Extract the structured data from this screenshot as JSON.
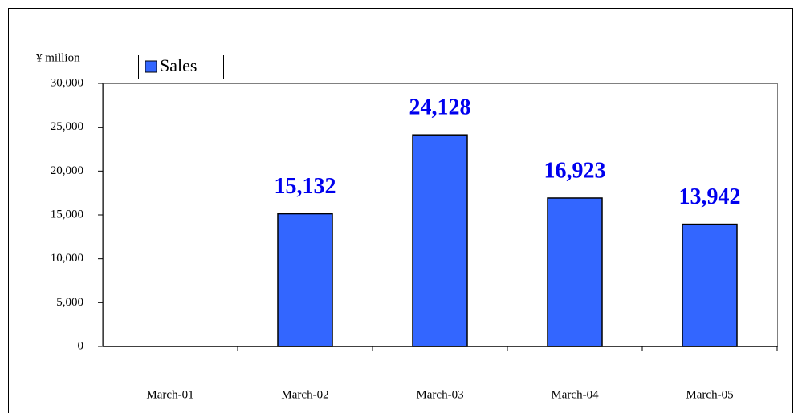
{
  "chart_data": {
    "type": "bar",
    "y_label": "¥ million",
    "categories": [
      "March-01",
      "March-02",
      "March-03",
      "March-04",
      "March-05"
    ],
    "series": [
      {
        "name": "Sales",
        "color": "#3366ff",
        "values": [
          null,
          15132,
          24128,
          16923,
          13942
        ],
        "value_labels": [
          null,
          "15,132",
          "24,128",
          "16,923",
          "13,942"
        ]
      }
    ],
    "ylim": [
      0,
      30000
    ],
    "yticks": [
      0,
      {
        "value": 5000,
        "label": "5,000"
      },
      {
        "value": 10000,
        "label": "10,000"
      },
      {
        "value": 15000,
        "label": "15,000"
      },
      {
        "value": 20000,
        "label": "20,000"
      },
      {
        "value": 25000,
        "label": "25,000"
      },
      {
        "value": 30000,
        "label": "30,000"
      }
    ],
    "legend": "top-left",
    "grid": false
  }
}
